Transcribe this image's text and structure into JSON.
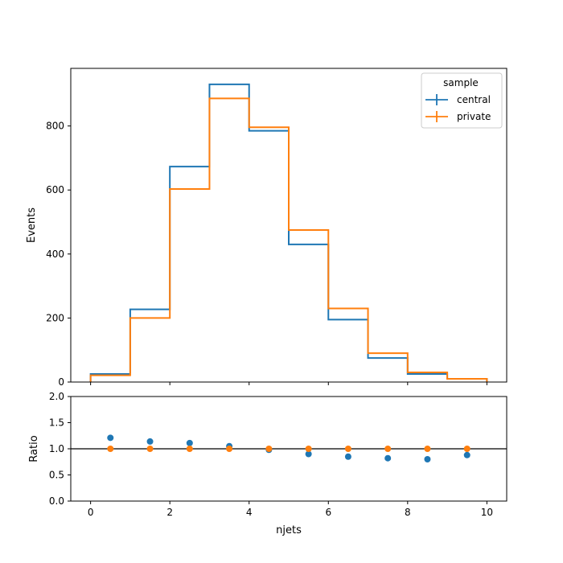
{
  "chart_data": [
    {
      "type": "step-histogram",
      "xlabel": "",
      "ylabel": "Events",
      "xlim": [
        -0.5,
        10.5
      ],
      "ylim": [
        0,
        980
      ],
      "yticks": [
        0,
        200,
        400,
        600,
        800
      ],
      "xticks": [
        0,
        2,
        4,
        6,
        8,
        10
      ],
      "bin_edges": [
        0,
        1,
        2,
        3,
        4,
        5,
        6,
        7,
        8,
        9,
        10
      ],
      "series": [
        {
          "name": "central",
          "color": "#1f77b4",
          "values": [
            25,
            227,
            673,
            930,
            785,
            430,
            195,
            75,
            25,
            10
          ]
        },
        {
          "name": "private",
          "color": "#ff7f0e",
          "values": [
            21,
            200,
            603,
            886,
            796,
            475,
            230,
            90,
            30,
            10
          ]
        }
      ],
      "legend": {
        "title": "sample",
        "placement": "top-right"
      }
    },
    {
      "type": "scatter",
      "xlabel": "njets",
      "ylabel": "Ratio",
      "xlim": [
        -0.5,
        10.5
      ],
      "ylim": [
        0,
        2
      ],
      "yticks": [
        "0.0",
        "0.5",
        "1.0",
        "1.5",
        "2.0"
      ],
      "xticks": [
        0,
        2,
        4,
        6,
        8,
        10
      ],
      "reference_line": 1.0,
      "x": [
        0.5,
        1.5,
        2.5,
        3.5,
        4.5,
        5.5,
        6.5,
        7.5,
        8.5,
        9.5
      ],
      "series": [
        {
          "color": "#1f77b4",
          "values": [
            1.21,
            1.14,
            1.11,
            1.05,
            0.98,
            0.9,
            0.85,
            0.82,
            0.8,
            0.88
          ]
        },
        {
          "color": "#ff7f0e",
          "values": [
            1.0,
            1.0,
            1.0,
            1.0,
            1.0,
            1.0,
            1.0,
            1.0,
            1.0,
            1.0
          ]
        }
      ]
    }
  ]
}
